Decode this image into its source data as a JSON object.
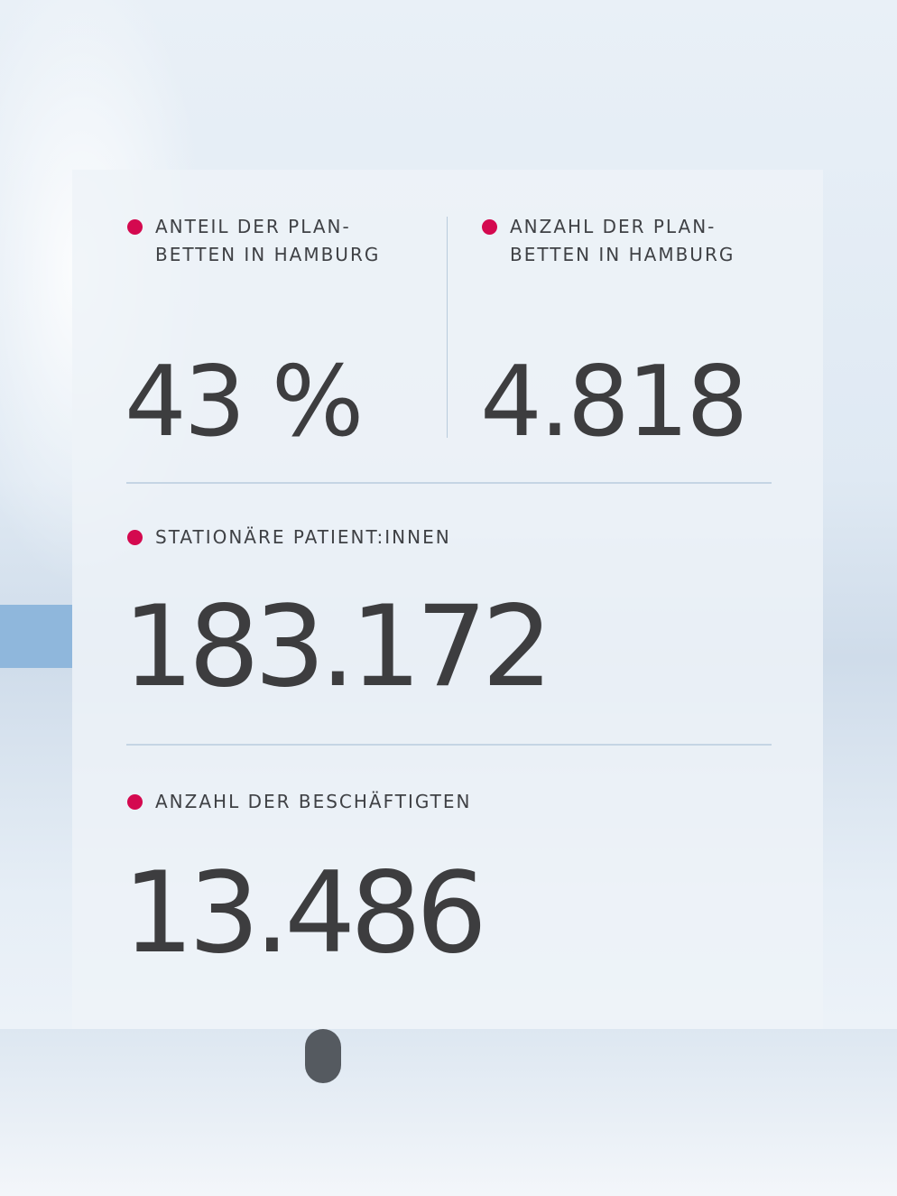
{
  "stats": [
    {
      "label": [
        "ANTEIL DER PLAN-",
        "BETTEN IN HAMBURG"
      ],
      "value": "43 %"
    },
    {
      "label": [
        "ANZAHL DER PLAN-",
        "BETTEN IN HAMBURG"
      ],
      "value": "4.818"
    },
    {
      "label": [
        "STATIONÄRE PATIENT:INNEN"
      ],
      "value": "183.172"
    },
    {
      "label": [
        "ANZAHL DER BESCHÄFTIGTEN"
      ],
      "value": "13.486"
    }
  ]
}
